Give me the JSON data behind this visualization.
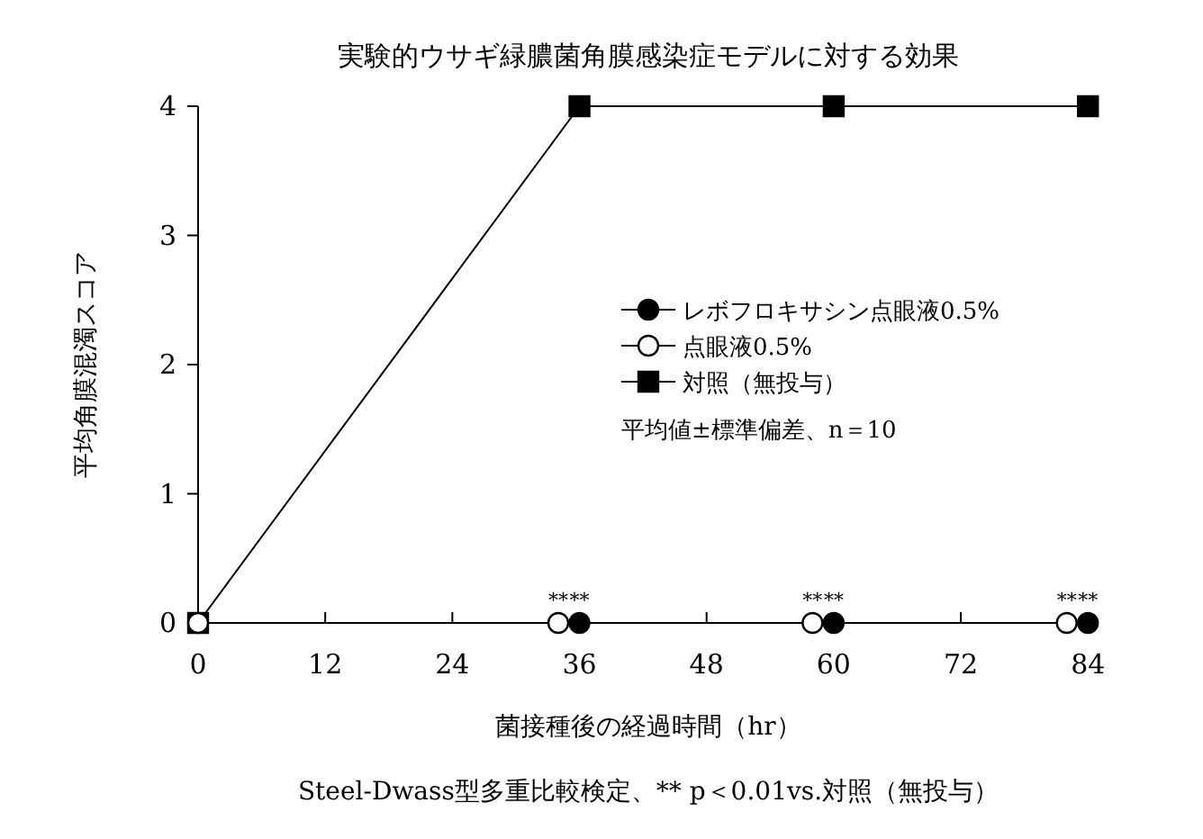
{
  "chart_data": {
    "type": "line",
    "title": "実験的ウサギ緑膿菌角膜感染症モデルに対する効果",
    "xlabel": "菌接種後の経過時間（hr）",
    "ylabel": "平均角膜混濁スコア",
    "series": [
      {
        "name": "レボフロキサシン点眼液0.5%",
        "type": "scatter",
        "color": "#000000",
        "marker": "circle",
        "x": [
          36,
          60,
          84
        ],
        "values": [
          0,
          0,
          0
        ]
      },
      {
        "name": "点眼液0.5%",
        "type": "scatter",
        "color": "#ffffff",
        "marker": "circle",
        "x": [
          0,
          34,
          58,
          82
        ],
        "values": [
          0,
          0,
          0,
          0
        ]
      },
      {
        "name": "対照（無投与）",
        "color": "#000000",
        "marker": "square",
        "x": [
          0,
          36,
          60,
          84
        ],
        "values": [
          0,
          4,
          4,
          4
        ]
      }
    ],
    "xlim": [
      0,
      85
    ],
    "xticks": [
      0,
      12,
      24,
      36,
      48,
      60,
      72,
      84
    ],
    "ylim": [
      0,
      4
    ],
    "yticks": [
      0,
      1,
      2,
      3,
      4
    ],
    "grid": false,
    "legend": "right",
    "annotations": [
      "平均値±標準偏差、n＝10",
      "Steel-Dwass型多重比較検定、** p＜0.01vs.対照（無投与）",
      {
        "text": "**",
        "x": 34,
        "y": 0
      },
      {
        "text": "**",
        "x": 36,
        "y": 0
      },
      {
        "text": "**",
        "x": 58,
        "y": 0
      },
      {
        "text": "**",
        "x": 60,
        "y": 0
      },
      {
        "text": "**",
        "x": 82,
        "y": 0
      },
      {
        "text": "**",
        "x": 84,
        "y": 0
      }
    ]
  }
}
